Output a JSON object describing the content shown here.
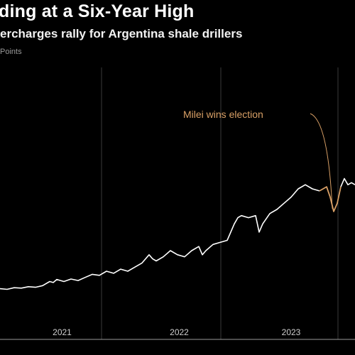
{
  "header": {
    "title": "ding at a Six-Year High",
    "subtitle": "ercharges rally for Argentina shale drillers",
    "unit": "Points"
  },
  "colors": {
    "background": "#000000",
    "line": "#ffffff",
    "highlight": "#d9a066",
    "grid": "#3a3a3a",
    "axis": "#9a9a9a"
  },
  "chart_data": {
    "type": "line",
    "title": "ding at a Six-Year High",
    "subtitle": "ercharges rally for Argentina shale drillers",
    "xlabel": "",
    "ylabel": "Points",
    "x_ticks": [
      "2021",
      "2022",
      "2023"
    ],
    "grid": "vertical lines at year boundaries",
    "legend": "none",
    "series": [
      {
        "values": [
          [
            0.0,
            0.115
          ],
          [
            0.02,
            0.112
          ],
          [
            0.04,
            0.12
          ],
          [
            0.06,
            0.118
          ],
          [
            0.08,
            0.125
          ],
          [
            0.1,
            0.122
          ],
          [
            0.12,
            0.13
          ],
          [
            0.14,
            0.15
          ],
          [
            0.15,
            0.145
          ],
          [
            0.16,
            0.16
          ],
          [
            0.18,
            0.15
          ],
          [
            0.2,
            0.162
          ],
          [
            0.22,
            0.155
          ],
          [
            0.24,
            0.17
          ],
          [
            0.26,
            0.185
          ],
          [
            0.28,
            0.18
          ],
          [
            0.3,
            0.2
          ],
          [
            0.32,
            0.19
          ],
          [
            0.34,
            0.21
          ],
          [
            0.36,
            0.2
          ],
          [
            0.38,
            0.22
          ],
          [
            0.4,
            0.24
          ],
          [
            0.42,
            0.28
          ],
          [
            0.43,
            0.26
          ],
          [
            0.44,
            0.25
          ],
          [
            0.46,
            0.27
          ],
          [
            0.48,
            0.3
          ],
          [
            0.5,
            0.28
          ],
          [
            0.52,
            0.27
          ],
          [
            0.54,
            0.3
          ],
          [
            0.56,
            0.32
          ],
          [
            0.57,
            0.28
          ],
          [
            0.58,
            0.3
          ],
          [
            0.6,
            0.33
          ],
          [
            0.62,
            0.34
          ],
          [
            0.64,
            0.35
          ],
          [
            0.66,
            0.43
          ],
          [
            0.67,
            0.46
          ],
          [
            0.68,
            0.47
          ],
          [
            0.7,
            0.46
          ],
          [
            0.72,
            0.47
          ],
          [
            0.73,
            0.39
          ],
          [
            0.74,
            0.43
          ],
          [
            0.76,
            0.48
          ],
          [
            0.78,
            0.5
          ],
          [
            0.8,
            0.53
          ],
          [
            0.82,
            0.56
          ],
          [
            0.84,
            0.6
          ],
          [
            0.86,
            0.62
          ],
          [
            0.88,
            0.6
          ],
          [
            0.9,
            0.59
          ],
          [
            0.92,
            0.61
          ],
          [
            0.93,
            0.56
          ],
          [
            0.94,
            0.49
          ],
          [
            0.95,
            0.53
          ],
          [
            0.96,
            0.61
          ],
          [
            0.97,
            0.65
          ],
          [
            0.98,
            0.62
          ],
          [
            0.99,
            0.63
          ],
          [
            1.0,
            0.62
          ]
        ],
        "color": "#ffffff",
        "highlight_segment": {
          "x_range": [
            0.9,
            0.96
          ],
          "color": "#d9a066"
        }
      }
    ],
    "annotations": [
      {
        "text": "Milei wins election"
      }
    ]
  }
}
